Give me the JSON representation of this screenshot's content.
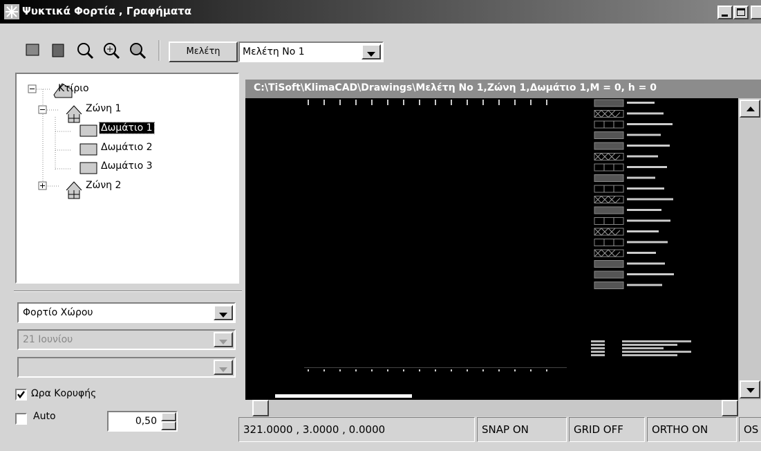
{
  "window": {
    "title": "Ψυκτικά Φορτία , Γραφήματα"
  },
  "toolbar": {
    "study_button": "Μελέτη",
    "study_select": "Μελέτη Νο 1"
  },
  "tree": {
    "nodes": [
      {
        "label": "Κτίριο"
      },
      {
        "label": "Ζώνη 1"
      },
      {
        "label": "Δωμάτιο 1"
      },
      {
        "label": "Δωμάτιο 2"
      },
      {
        "label": "Δωμάτιο 3"
      },
      {
        "label": "Ζώνη 2"
      }
    ]
  },
  "panel": {
    "load_type": "Φορτίο Χώρου",
    "date": "21 Ιουνίου",
    "peak_hour": "Ωρα Κορυφής",
    "auto": "Auto",
    "auto_value": "0,50"
  },
  "drawing": {
    "title": "C:\\TiSoft\\KlimaCAD\\Drawings\\Μελέτη Νο 1,Ζώνη 1,Δωμάτιο 1,M = 0, h = 0"
  },
  "status": {
    "coords": "321.0000 , 3.0000 , 0.0000",
    "snap": "SNAP ON",
    "grid": "GRID OFF",
    "ortho": "ORTHO ON",
    "osnap": "OS"
  }
}
